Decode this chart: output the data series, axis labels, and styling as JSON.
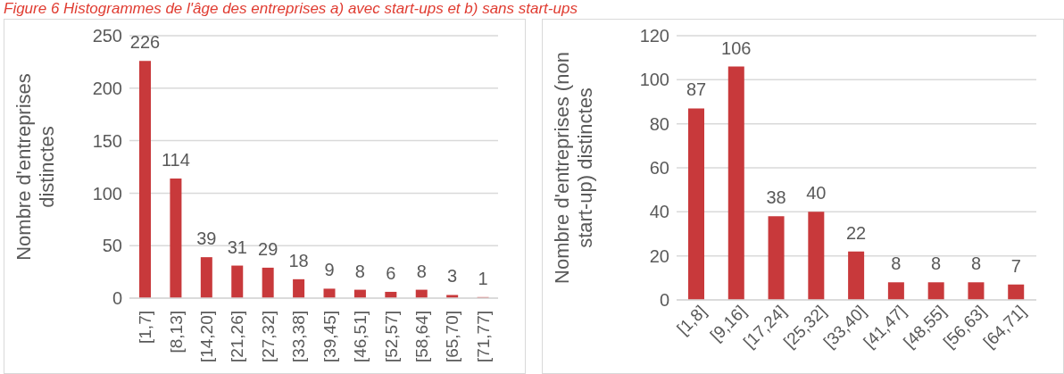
{
  "chart_data": [
    {
      "type": "bar",
      "title": "Figure 6 Histogrammes de l'âge des entreprises a) avec start-ups et b) sans start-ups",
      "ylabel": "Nombre d'entreprises distinctes",
      "categories": [
        "[1,7]",
        "[8,13]",
        "[14,20]",
        "[21,26]",
        "[27,32]",
        "[33,38]",
        "[39,45]",
        "[46,51]",
        "[52,57]",
        "[58,64]",
        "[65,70]",
        "[71,77]"
      ],
      "values": [
        226,
        114,
        39,
        31,
        29,
        18,
        9,
        8,
        6,
        8,
        3,
        1
      ],
      "color": "#c8393b",
      "ylim": [
        0,
        250
      ],
      "yticks": [
        0,
        50,
        100,
        150,
        200,
        250
      ],
      "grid": "y",
      "data_labels": true
    },
    {
      "type": "bar",
      "ylabel": "Nombre d'entreprises (non start-up) distinctes",
      "categories": [
        "[1,8]",
        "[9,16]",
        "[17,24]",
        "[25,32]",
        "[33,40]",
        "[41,47]",
        "[48,55]",
        "[56,63]",
        "[64,71]"
      ],
      "values": [
        87,
        106,
        38,
        40,
        22,
        8,
        8,
        8,
        7
      ],
      "color": "#c8393b",
      "ylim": [
        0,
        120
      ],
      "yticks": [
        0,
        20,
        40,
        60,
        80,
        100,
        120
      ],
      "grid": "y",
      "data_labels": true
    }
  ]
}
